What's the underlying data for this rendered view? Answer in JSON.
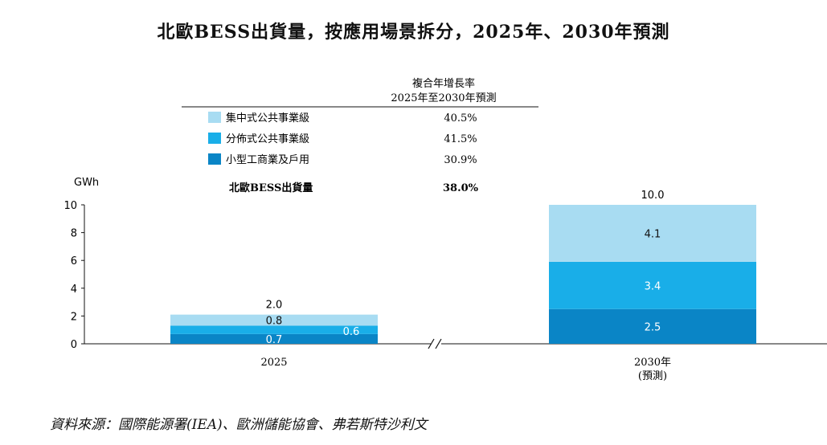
{
  "title": "北歐BESS出貨量，按應用場景拆分，2025年、2030年預測",
  "legend_table": {
    "header_line1": "複合年增長率",
    "header_line2": "2025年至2030年預測",
    "rows": [
      {
        "label": "集中式公共事業級",
        "cagr": "40.5%",
        "color": "#a8dcf2"
      },
      {
        "label": "分佈式公共事業級",
        "cagr": "41.5%",
        "color": "#19aee8"
      },
      {
        "label": "小型工商業及戶用",
        "cagr": "30.9%",
        "color": "#0a85c6"
      }
    ],
    "total_label": "北歐BESS出貨量",
    "total_cagr": "38.0%"
  },
  "chart_data": {
    "type": "bar",
    "stacked": true,
    "ylabel": "GWh",
    "ylim": [
      0,
      10
    ],
    "yticks": [
      "0",
      "2",
      "4",
      "6",
      "8",
      "10"
    ],
    "categories": [
      "2025",
      "2030年\n(預測)"
    ],
    "series": [
      {
        "name": "小型工商業及戶用",
        "values": [
          0.7,
          2.5
        ],
        "labels": [
          "0.7",
          "2.5"
        ]
      },
      {
        "name": "分佈式公共事業級",
        "values": [
          0.6,
          3.4
        ],
        "labels": [
          "0.6",
          "3.4"
        ]
      },
      {
        "name": "集中式公共事業級",
        "values": [
          0.8,
          4.1
        ],
        "labels": [
          "0.8",
          "4.1"
        ]
      }
    ],
    "totals": [
      "2.0",
      "10.0"
    ],
    "axis_break": true
  },
  "source": "資料來源：國際能源署(IEA)、歐洲儲能協會、弗若斯特沙利文"
}
